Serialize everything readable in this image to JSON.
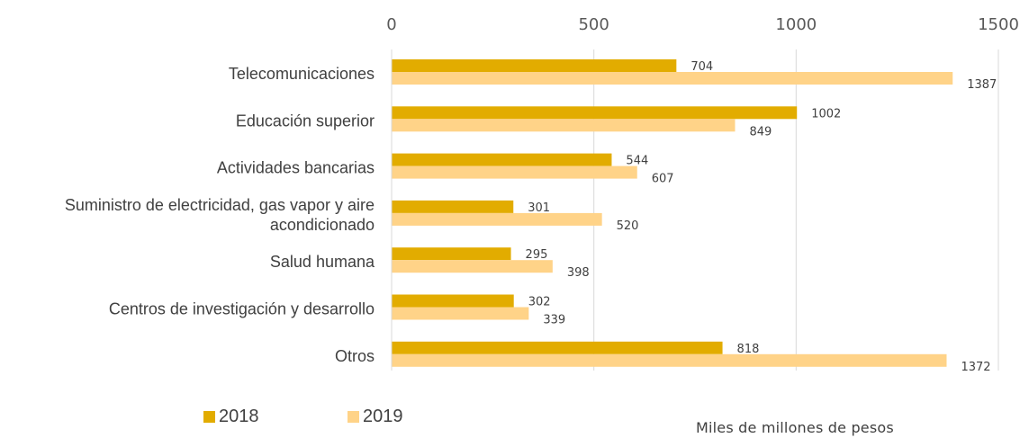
{
  "chart_data": {
    "type": "bar",
    "orientation": "horizontal",
    "categories": [
      [
        "Telecomunicaciones"
      ],
      [
        "Educación superior"
      ],
      [
        "Actividades bancarias"
      ],
      [
        "Suministro de electricidad, gas vapor y aire",
        "acondicionado"
      ],
      [
        "Salud humana"
      ],
      [
        "Centros de investigación y desarrollo"
      ],
      [
        "Otros"
      ]
    ],
    "series": [
      {
        "name": "2018",
        "color": "#E2AC00",
        "values": [
          704,
          1002,
          544,
          301,
          295,
          302,
          818
        ]
      },
      {
        "name": "2019",
        "color": "#FFD388",
        "values": [
          1387,
          849,
          607,
          520,
          398,
          339,
          1372
        ]
      }
    ],
    "x_ticks": [
      "0",
      "500",
      "1000",
      "1500"
    ],
    "xlim": [
      0,
      1500
    ],
    "x_axis_position": "top",
    "grid": true,
    "legend_position": "bottom-left",
    "unit_note": "Miles de millones de pesos"
  }
}
